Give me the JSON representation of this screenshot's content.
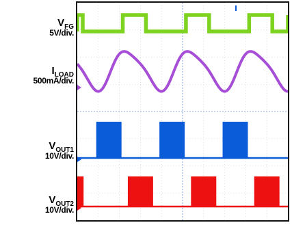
{
  "chart_data": {
    "type": "line",
    "title": "",
    "x_divisions": 10,
    "y_divisions": 8,
    "grid": true,
    "channels": [
      {
        "id": "fg",
        "name_main": "V",
        "name_sub": "FG",
        "scale": "5V/div.",
        "marker": "",
        "color": "#7ed321",
        "kind": "digital",
        "edges": [
          -0.5,
          0.26,
          2.16,
          3.26,
          5.16,
          6.26,
          8.16,
          9.26,
          11.16
        ],
        "low_at_start": true
      },
      {
        "id": "iload",
        "name_main": "I",
        "name_sub": "LOAD",
        "scale": "500mA/div.",
        "marker": "B",
        "color": "#a64fd6",
        "kind": "analog",
        "period": 3.0,
        "phase": 1.65
      },
      {
        "id": "vout1",
        "name_main": "V",
        "name_sub": "OUT1",
        "scale": "10V/div.",
        "marker": "D",
        "color": "#0a5cd8",
        "kind": "burst",
        "bursts": [
          [
            0.9,
            2.1
          ],
          [
            3.9,
            5.1
          ],
          [
            6.9,
            8.1
          ]
        ]
      },
      {
        "id": "vout2",
        "name_main": "V",
        "name_sub": "OUT2",
        "scale": "10V/div.",
        "marker": "R",
        "color": "#ee1111",
        "kind": "burst",
        "bursts": [
          [
            -0.5,
            0.3
          ],
          [
            2.4,
            3.6
          ],
          [
            5.4,
            6.6
          ],
          [
            8.4,
            9.6
          ]
        ]
      }
    ]
  }
}
